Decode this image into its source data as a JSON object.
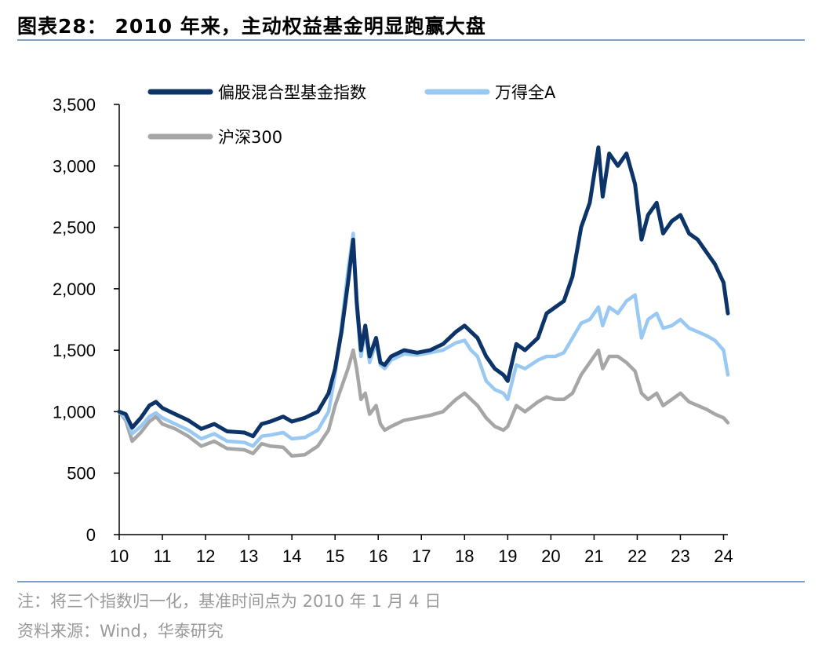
{
  "title": "图表28：  2010 年来，主动权益基金明显跑赢大盘",
  "note": "注：将三个指数归一化，基准时间点为 2010 年 1 月 4 日",
  "source": "资料来源：Wind，华泰研究",
  "chart_data": {
    "type": "line",
    "title": "2010 年来，主动权益基金明显跑赢大盘",
    "xlabel": "",
    "ylabel": "",
    "xlim": [
      2010.0,
      2024.1
    ],
    "ylim": [
      0,
      3500
    ],
    "yticks": [
      0,
      500,
      1000,
      1500,
      2000,
      2500,
      3000,
      3500
    ],
    "ytick_labels": [
      "0",
      "500",
      "1,000",
      "1,500",
      "2,000",
      "2,500",
      "3,000",
      "3,500"
    ],
    "xticks": [
      2010,
      2011,
      2012,
      2013,
      2014,
      2015,
      2016,
      2017,
      2018,
      2019,
      2020,
      2021,
      2022,
      2023,
      2024
    ],
    "xtick_labels": [
      "10",
      "11",
      "12",
      "13",
      "14",
      "15",
      "16",
      "17",
      "18",
      "19",
      "20",
      "21",
      "22",
      "23",
      "24"
    ],
    "legend_position": "top-left",
    "series": [
      {
        "name": "偏股混合型基金指数",
        "color": "#0d3468",
        "x": [
          2010.0,
          2010.15,
          2010.3,
          2010.5,
          2010.7,
          2010.85,
          2011.0,
          2011.3,
          2011.6,
          2011.9,
          2012.2,
          2012.5,
          2012.9,
          2013.1,
          2013.3,
          2013.5,
          2013.8,
          2014.0,
          2014.3,
          2014.6,
          2014.85,
          2015.0,
          2015.15,
          2015.3,
          2015.42,
          2015.5,
          2015.6,
          2015.7,
          2015.8,
          2015.95,
          2016.05,
          2016.15,
          2016.3,
          2016.6,
          2016.9,
          2017.2,
          2017.5,
          2017.8,
          2018.0,
          2018.15,
          2018.3,
          2018.5,
          2018.7,
          2018.9,
          2019.0,
          2019.2,
          2019.4,
          2019.7,
          2019.9,
          2020.1,
          2020.3,
          2020.5,
          2020.7,
          2020.9,
          2021.1,
          2021.2,
          2021.35,
          2021.55,
          2021.75,
          2021.95,
          2022.1,
          2022.25,
          2022.45,
          2022.6,
          2022.8,
          2023.0,
          2023.2,
          2023.4,
          2023.6,
          2023.8,
          2024.0,
          2024.1
        ],
        "y": [
          1000,
          980,
          870,
          950,
          1050,
          1080,
          1030,
          980,
          930,
          860,
          900,
          840,
          830,
          800,
          900,
          920,
          960,
          920,
          950,
          1000,
          1150,
          1350,
          1650,
          2050,
          2400,
          1900,
          1500,
          1700,
          1450,
          1600,
          1400,
          1380,
          1450,
          1500,
          1480,
          1500,
          1550,
          1650,
          1700,
          1650,
          1600,
          1450,
          1350,
          1300,
          1250,
          1550,
          1500,
          1600,
          1800,
          1850,
          1900,
          2100,
          2500,
          2700,
          3150,
          2750,
          3100,
          3000,
          3100,
          2850,
          2400,
          2600,
          2700,
          2450,
          2550,
          2600,
          2450,
          2400,
          2300,
          2200,
          2050,
          1800
        ]
      },
      {
        "name": "万得全A",
        "color": "#99c9f2",
        "x": [
          2010.0,
          2010.15,
          2010.3,
          2010.5,
          2010.7,
          2010.85,
          2011.0,
          2011.3,
          2011.6,
          2011.9,
          2012.2,
          2012.5,
          2012.9,
          2013.1,
          2013.3,
          2013.5,
          2013.8,
          2014.0,
          2014.3,
          2014.6,
          2014.85,
          2015.0,
          2015.15,
          2015.3,
          2015.42,
          2015.5,
          2015.6,
          2015.7,
          2015.8,
          2015.95,
          2016.05,
          2016.15,
          2016.3,
          2016.6,
          2016.9,
          2017.2,
          2017.5,
          2017.8,
          2018.0,
          2018.15,
          2018.3,
          2018.5,
          2018.7,
          2018.9,
          2019.0,
          2019.2,
          2019.4,
          2019.7,
          2019.9,
          2020.1,
          2020.3,
          2020.5,
          2020.7,
          2020.9,
          2021.1,
          2021.2,
          2021.35,
          2021.55,
          2021.75,
          2021.95,
          2022.1,
          2022.25,
          2022.45,
          2022.6,
          2022.8,
          2023.0,
          2023.2,
          2023.4,
          2023.6,
          2023.8,
          2024.0,
          2024.1
        ],
        "y": [
          1000,
          950,
          820,
          880,
          960,
          990,
          950,
          900,
          850,
          780,
          820,
          760,
          750,
          720,
          800,
          810,
          830,
          780,
          790,
          850,
          1000,
          1300,
          1700,
          2150,
          2450,
          1850,
          1450,
          1650,
          1400,
          1560,
          1380,
          1350,
          1420,
          1470,
          1460,
          1480,
          1500,
          1560,
          1580,
          1500,
          1450,
          1250,
          1180,
          1150,
          1100,
          1380,
          1350,
          1420,
          1450,
          1450,
          1480,
          1600,
          1720,
          1750,
          1850,
          1700,
          1850,
          1800,
          1900,
          1950,
          1600,
          1750,
          1800,
          1680,
          1700,
          1750,
          1680,
          1650,
          1620,
          1580,
          1500,
          1300
        ]
      },
      {
        "name": "沪深300",
        "color": "#a6a6a6",
        "x": [
          2010.0,
          2010.15,
          2010.3,
          2010.5,
          2010.7,
          2010.85,
          2011.0,
          2011.3,
          2011.6,
          2011.9,
          2012.2,
          2012.5,
          2012.9,
          2013.1,
          2013.3,
          2013.5,
          2013.8,
          2014.0,
          2014.3,
          2014.6,
          2014.85,
          2015.0,
          2015.15,
          2015.3,
          2015.42,
          2015.5,
          2015.6,
          2015.7,
          2015.8,
          2015.95,
          2016.05,
          2016.15,
          2016.3,
          2016.6,
          2016.9,
          2017.2,
          2017.5,
          2017.8,
          2018.0,
          2018.15,
          2018.3,
          2018.5,
          2018.7,
          2018.9,
          2019.0,
          2019.2,
          2019.4,
          2019.7,
          2019.9,
          2020.1,
          2020.3,
          2020.5,
          2020.7,
          2020.9,
          2021.1,
          2021.2,
          2021.35,
          2021.55,
          2021.75,
          2021.95,
          2022.1,
          2022.25,
          2022.45,
          2022.6,
          2022.8,
          2023.0,
          2023.2,
          2023.4,
          2023.6,
          2023.8,
          2024.0,
          2024.1
        ],
        "y": [
          1000,
          930,
          760,
          830,
          920,
          960,
          900,
          860,
          800,
          720,
          760,
          700,
          690,
          660,
          740,
          720,
          710,
          640,
          650,
          720,
          850,
          1050,
          1200,
          1350,
          1500,
          1350,
          1100,
          1150,
          980,
          1050,
          900,
          850,
          880,
          930,
          950,
          970,
          1000,
          1100,
          1150,
          1100,
          1050,
          950,
          880,
          850,
          880,
          1050,
          1000,
          1080,
          1120,
          1100,
          1100,
          1150,
          1300,
          1400,
          1500,
          1350,
          1450,
          1450,
          1400,
          1330,
          1150,
          1100,
          1150,
          1050,
          1100,
          1150,
          1080,
          1050,
          1020,
          980,
          950,
          910
        ]
      }
    ]
  }
}
